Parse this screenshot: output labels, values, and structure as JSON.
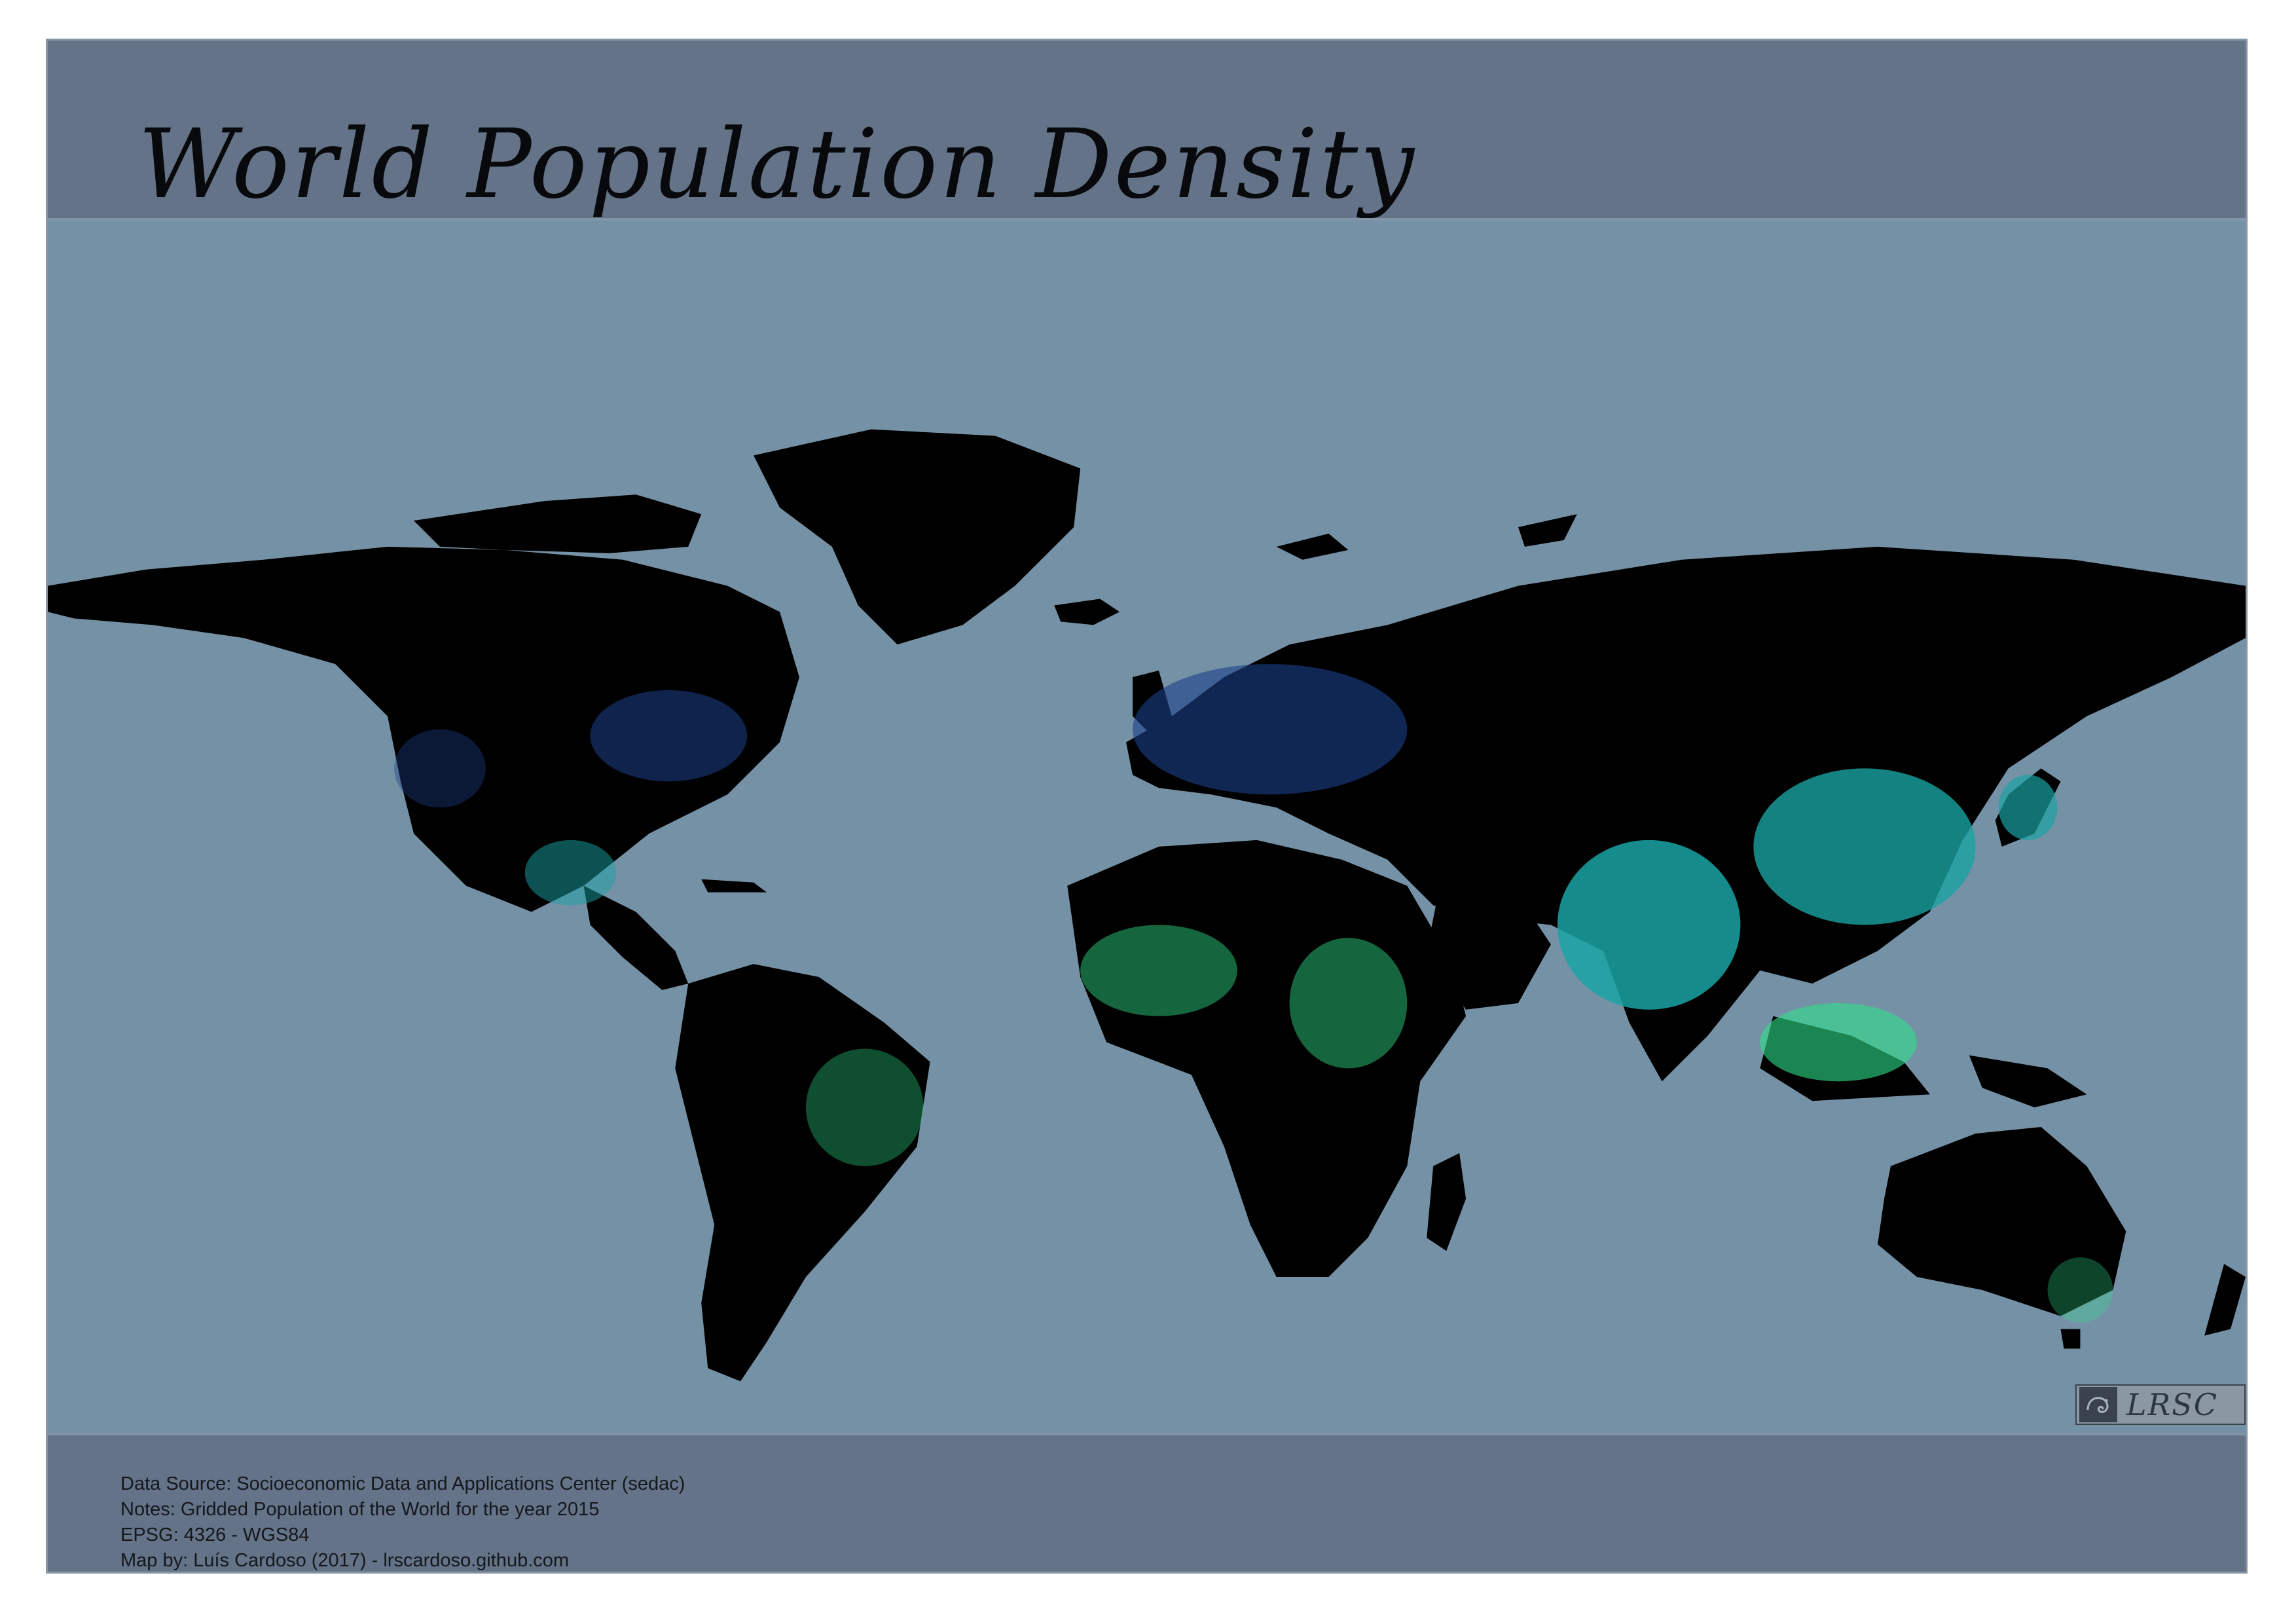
{
  "title": "World Population Density",
  "badge": {
    "text": "LRSC",
    "icon": "chameleon-logo-icon"
  },
  "notes": [
    "Data Source: Socioeconomic Data and Applications Center (sedac)",
    "Notes: Gridded Population of the World for the year 2015",
    "EPSG: 4326 - WGS84",
    "Map by: Luís Cardoso (2017) - lrscardoso.github.com"
  ],
  "colors": {
    "frame": "#647387",
    "ocean": "#7591a6",
    "land": "#000000",
    "density_low": "#1b3f8a",
    "density_mid": "#1aa3a3",
    "density_high": "#2ee08a"
  }
}
